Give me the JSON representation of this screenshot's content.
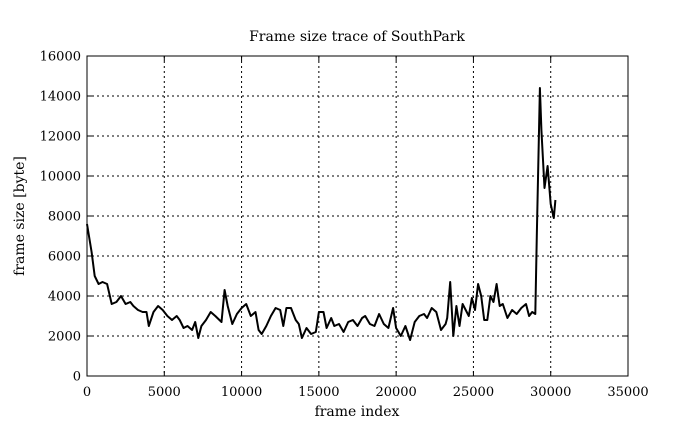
{
  "chart_data": {
    "type": "line",
    "title": "Frame size trace of SouthPark",
    "xlabel": "frame index",
    "ylabel": "frame size [byte]",
    "xlim": [
      0,
      35000
    ],
    "ylim": [
      0,
      16000
    ],
    "grid": true,
    "legend": "none",
    "line_color": "#000000",
    "x_ticks": [
      0,
      5000,
      10000,
      15000,
      20000,
      25000,
      30000,
      35000
    ],
    "y_ticks": [
      0,
      2000,
      4000,
      6000,
      8000,
      10000,
      12000,
      14000,
      16000
    ],
    "x_tick_labels": [
      "0",
      "5000",
      "10000",
      "15000",
      "20000",
      "25000",
      "30000",
      "35000"
    ],
    "y_tick_labels": [
      "0",
      "2000",
      "4000",
      "6000",
      "8000",
      "10000",
      "12000",
      "14000",
      "16000"
    ],
    "series": [
      {
        "x": [
          0,
          300,
          500,
          750,
          1000,
          1300,
          1600,
          1900,
          2200,
          2500,
          2800,
          3000,
          3300,
          3600,
          3850,
          4000,
          4300,
          4600,
          4900,
          5200,
          5500,
          5800,
          6000,
          6250,
          6500,
          6800,
          7000,
          7200,
          7400,
          7700,
          8000,
          8300,
          8700,
          8900,
          9100,
          9400,
          9700,
          10000,
          10300,
          10600,
          10900,
          11100,
          11300,
          11600,
          11900,
          12200,
          12500,
          12700,
          12900,
          13200,
          13500,
          13700,
          13900,
          14200,
          14500,
          14800,
          15000,
          15300,
          15500,
          15800,
          16000,
          16300,
          16600,
          16900,
          17200,
          17500,
          17800,
          18000,
          18300,
          18600,
          18900,
          19200,
          19500,
          19800,
          20000,
          20300,
          20600,
          20900,
          21200,
          21500,
          21800,
          22000,
          22300,
          22600,
          22900,
          23200,
          23300,
          23500,
          23700,
          23900,
          24100,
          24300,
          24500,
          24700,
          24900,
          25100,
          25300,
          25500,
          25700,
          25900,
          26100,
          26300,
          26500,
          26700,
          26900,
          27200,
          27500,
          27800,
          28100,
          28400,
          28600,
          28800,
          29000,
          29100,
          29300,
          29400,
          29600,
          29800,
          30000,
          30200,
          30300
        ],
        "y": [
          7600,
          6200,
          5000,
          4600,
          4700,
          4600,
          3600,
          3700,
          4000,
          3600,
          3700,
          3500,
          3300,
          3200,
          3200,
          2500,
          3200,
          3500,
          3300,
          3000,
          2800,
          3000,
          2800,
          2400,
          2500,
          2300,
          2700,
          1900,
          2500,
          2800,
          3200,
          3000,
          2700,
          4300,
          3500,
          2600,
          3100,
          3400,
          3600,
          3000,
          3200,
          2300,
          2100,
          2500,
          3000,
          3400,
          3300,
          2500,
          3400,
          3400,
          2800,
          2600,
          1900,
          2400,
          2100,
          2200,
          3200,
          3200,
          2400,
          2900,
          2500,
          2600,
          2200,
          2700,
          2800,
          2500,
          2900,
          3000,
          2600,
          2500,
          3100,
          2600,
          2400,
          3400,
          2400,
          2000,
          2500,
          1800,
          2700,
          3000,
          3100,
          2900,
          3400,
          3200,
          2300,
          2600,
          2900,
          4700,
          2000,
          3500,
          2500,
          3600,
          3300,
          3000,
          3900,
          3300,
          4600,
          4000,
          2800,
          2800,
          4000,
          3700,
          4600,
          3500,
          3600,
          2900,
          3300,
          3100,
          3400,
          3600,
          3000,
          3200,
          3100,
          7000,
          14400,
          12300,
          9400,
          10500,
          8600,
          7900,
          8800
        ]
      }
    ]
  }
}
